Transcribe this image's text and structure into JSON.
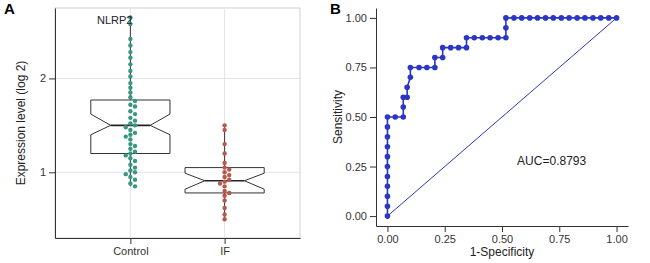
{
  "chart_data": [
    {
      "panel": "A",
      "type": "box",
      "title": "NLRP2",
      "y_label": "Expression level (log 2)",
      "categories": [
        "Control",
        "IF"
      ],
      "colors": [
        "#3a9682",
        "#b9574a"
      ],
      "boxes": [
        {
          "min": 0.85,
          "q1": 1.2,
          "median": 1.5,
          "q3": 1.77,
          "max": 2.65,
          "notch_low": 1.4,
          "notch_high": 1.62
        },
        {
          "min": 0.5,
          "q1": 0.78,
          "median": 0.91,
          "q3": 1.05,
          "max": 1.5,
          "notch_low": 0.82,
          "notch_high": 0.99
        }
      ],
      "points": [
        [
          2.65,
          2.58,
          2.42,
          2.35,
          2.28,
          2.22,
          2.15,
          2.08,
          2.02,
          1.95,
          1.9,
          1.85,
          1.8,
          1.76,
          1.72,
          1.7,
          1.65,
          1.62,
          1.58,
          1.55,
          1.52,
          1.5,
          1.48,
          1.45,
          1.42,
          1.4,
          1.38,
          1.35,
          1.3,
          1.28,
          1.25,
          1.22,
          1.2,
          1.18,
          1.15,
          1.12,
          1.08,
          1.05,
          1.02,
          1.0,
          0.98,
          0.95,
          0.92,
          0.88,
          0.85
        ],
        [
          1.5,
          1.45,
          1.3,
          1.2,
          1.1,
          1.05,
          1.03,
          1.0,
          0.97,
          0.95,
          0.92,
          0.9,
          0.88,
          0.85,
          0.8,
          0.78,
          0.75,
          0.7,
          0.62,
          0.55,
          0.5
        ]
      ],
      "ylim": [
        0.3,
        2.75
      ],
      "yticks": [
        1,
        2
      ],
      "grid": true
    },
    {
      "panel": "B",
      "type": "line",
      "x_label": "1-Specificity",
      "y_label": "Sensitivity",
      "color": "#2b36c4",
      "marker": "circle",
      "x": [
        0,
        0,
        0,
        0,
        0,
        0,
        0,
        0,
        0,
        0,
        0,
        0.034,
        0.069,
        0.069,
        0.069,
        0.086,
        0.086,
        0.1,
        0.1,
        0.138,
        0.172,
        0.207,
        0.207,
        0.241,
        0.241,
        0.276,
        0.31,
        0.345,
        0.345,
        0.379,
        0.414,
        0.448,
        0.483,
        0.517,
        0.517,
        0.517,
        0.552,
        0.586,
        0.621,
        0.655,
        0.69,
        0.724,
        0.759,
        0.793,
        0.828,
        0.862,
        0.897,
        0.931,
        0.966,
        1
      ],
      "values": [
        0,
        0.05,
        0.1,
        0.15,
        0.2,
        0.25,
        0.3,
        0.35,
        0.4,
        0.45,
        0.5,
        0.5,
        0.5,
        0.55,
        0.6,
        0.6,
        0.65,
        0.7,
        0.75,
        0.75,
        0.75,
        0.75,
        0.8,
        0.8,
        0.85,
        0.85,
        0.85,
        0.85,
        0.9,
        0.9,
        0.9,
        0.9,
        0.9,
        0.9,
        0.95,
        1,
        1,
        1,
        1,
        1,
        1,
        1,
        1,
        1,
        1,
        1,
        1,
        1,
        1,
        1
      ],
      "reference_line": {
        "x": [
          0,
          1
        ],
        "y": [
          0,
          1
        ]
      },
      "annotation": "AUC=0.8793",
      "xlim": [
        -0.05,
        1.05
      ],
      "ylim": [
        -0.05,
        1.05
      ],
      "xticks": [
        {
          "value": 0,
          "label": "0.00"
        },
        {
          "value": 0.25,
          "label": "0.25"
        },
        {
          "value": 0.5,
          "label": "0.50"
        },
        {
          "value": 0.75,
          "label": "0.75"
        },
        {
          "value": 1,
          "label": "1.00"
        }
      ],
      "yticks": [
        {
          "value": 0,
          "label": "0.00"
        },
        {
          "value": 0.25,
          "label": "0.25"
        },
        {
          "value": 0.5,
          "label": "0.50"
        },
        {
          "value": 0.75,
          "label": "0.75"
        },
        {
          "value": 1,
          "label": "1.00"
        }
      ],
      "grid": false
    }
  ]
}
